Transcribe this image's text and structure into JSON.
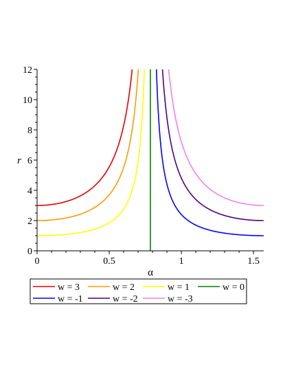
{
  "chart_data": {
    "type": "line",
    "xlabel": "α",
    "ylabel": "r",
    "xlim": [
      0,
      1.5708
    ],
    "ylim": [
      0,
      12
    ],
    "xticks": [
      {
        "value": 0,
        "label": "0"
      },
      {
        "value": 0.5,
        "label": "0.5"
      },
      {
        "value": 1,
        "label": "1"
      },
      {
        "value": 1.5,
        "label": "1.5"
      }
    ],
    "yticks": [
      {
        "value": 0,
        "label": "0"
      },
      {
        "value": 2,
        "label": "2"
      },
      {
        "value": 4,
        "label": "4"
      },
      {
        "value": 6,
        "label": "6"
      },
      {
        "value": 8,
        "label": "8"
      },
      {
        "value": 10,
        "label": "10"
      },
      {
        "value": 12,
        "label": "12"
      }
    ],
    "grid": false,
    "legend_position": "bottom",
    "series": [
      {
        "name": "w = 3",
        "w": 3,
        "color": "#e50000",
        "x": [
          0,
          0.1,
          0.2,
          0.3,
          0.4,
          0.5,
          0.55,
          0.6,
          0.63,
          0.65,
          0.66
        ],
        "y": [
          3.0,
          3.03,
          3.13,
          3.34,
          3.76,
          4.67,
          5.53,
          7.15,
          8.9,
          10.87,
          12.4
        ]
      },
      {
        "name": "w = 2",
        "w": 2,
        "color": "#ff9b00",
        "x": [
          0,
          0.1,
          0.2,
          0.3,
          0.4,
          0.5,
          0.6,
          0.65,
          0.7,
          0.72
        ],
        "y": [
          2.0,
          2.02,
          2.09,
          2.23,
          2.51,
          3.11,
          4.77,
          7.25,
          11.1,
          13.3
        ]
      },
      {
        "name": "w = 1",
        "w": 1,
        "color": "#ffff00",
        "x": [
          0,
          0.1,
          0.2,
          0.3,
          0.4,
          0.5,
          0.6,
          0.7,
          0.74,
          0.76
        ],
        "y": [
          1.0,
          1.01,
          1.04,
          1.11,
          1.25,
          1.56,
          2.38,
          5.54,
          11.0,
          17.3
        ]
      },
      {
        "name": "w = 0",
        "w": 0,
        "color": "#008000",
        "x": [
          0.7854,
          0.7854
        ],
        "y": [
          0,
          12
        ]
      },
      {
        "name": "w = -1",
        "w": -1,
        "color": "#0000ff",
        "x": [
          0.81,
          0.83,
          0.85,
          0.9,
          1.0,
          1.1,
          1.2,
          1.3,
          1.4,
          1.5,
          1.5708
        ],
        "y": [
          17.8,
          9.96,
          6.87,
          4.47,
          2.44,
          1.76,
          1.43,
          1.24,
          1.12,
          1.04,
          1.0
        ]
      },
      {
        "name": "w = -2",
        "w": -2,
        "color": "#4b0082",
        "x": [
          0.85,
          0.87,
          0.9,
          0.95,
          1.0,
          1.1,
          1.2,
          1.3,
          1.4,
          1.5,
          1.5708
        ],
        "y": [
          13.7,
          11.3,
          8.95,
          6.58,
          4.89,
          3.52,
          2.86,
          2.47,
          2.23,
          2.07,
          2.0
        ]
      },
      {
        "name": "w = -3",
        "w": -3,
        "color": "#ee82ee",
        "x": [
          0.9,
          0.95,
          1.0,
          1.05,
          1.1,
          1.2,
          1.3,
          1.4,
          1.5,
          1.5708
        ],
        "y": [
          13.4,
          9.87,
          7.33,
          6.02,
          5.28,
          4.29,
          3.71,
          3.35,
          3.11,
          3.0
        ]
      }
    ]
  }
}
